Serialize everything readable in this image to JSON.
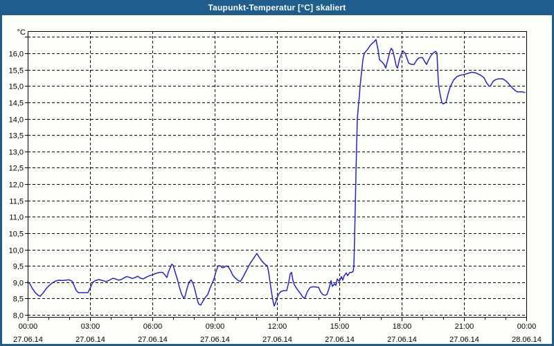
{
  "window": {
    "title": "Taupunkt-Temperatur [°C] skaliert"
  },
  "colors": {
    "titlebar_bg": "#1e5d8c",
    "frame": "#1e5d8c",
    "title_text": "#ffffff",
    "background": "#fcfef8",
    "grid": "#000000",
    "axis_text": "#000000",
    "line": "#2222c8"
  },
  "chart_data": {
    "type": "line",
    "title": "Taupunkt-Temperatur [°C] skaliert",
    "unit_label": "°C",
    "grid": "dashed",
    "legend_position": "none",
    "ylim": [
      8.0,
      16.5
    ],
    "xlim_minutes": [
      0,
      1440
    ],
    "y_axis": {
      "ticks": [
        {
          "value": 16.5,
          "label": ""
        },
        {
          "value": 16.0,
          "label": "16,0"
        },
        {
          "value": 15.5,
          "label": "15,5"
        },
        {
          "value": 15.0,
          "label": "15,0"
        },
        {
          "value": 14.5,
          "label": "14,5"
        },
        {
          "value": 14.0,
          "label": "14,0"
        },
        {
          "value": 13.5,
          "label": "13,5"
        },
        {
          "value": 13.0,
          "label": "13,0"
        },
        {
          "value": 12.5,
          "label": "12,5"
        },
        {
          "value": 12.0,
          "label": "12,0"
        },
        {
          "value": 11.5,
          "label": "11,5"
        },
        {
          "value": 11.0,
          "label": "11,0"
        },
        {
          "value": 10.5,
          "label": "10,5"
        },
        {
          "value": 10.0,
          "label": "10,0"
        },
        {
          "value": 9.5,
          "label": "9,5"
        },
        {
          "value": 9.0,
          "label": "9,0"
        },
        {
          "value": 8.5,
          "label": "8,5"
        },
        {
          "value": 8.0,
          "label": "8,0"
        }
      ]
    },
    "x_axis": {
      "minor_tick_every_minutes": 60,
      "ticks": [
        {
          "minutes": 0,
          "time": "00:00",
          "date": "27.06.14"
        },
        {
          "minutes": 180,
          "time": "03:00",
          "date": "27.06.14"
        },
        {
          "minutes": 360,
          "time": "06:00",
          "date": "27.06.14"
        },
        {
          "minutes": 540,
          "time": "09:00",
          "date": "27.06.14"
        },
        {
          "minutes": 720,
          "time": "12:00",
          "date": "27.06.14"
        },
        {
          "minutes": 900,
          "time": "15:00",
          "date": "27.06.14"
        },
        {
          "minutes": 1080,
          "time": "18:00",
          "date": "27.06.14"
        },
        {
          "minutes": 1260,
          "time": "21:00",
          "date": "27.06.14"
        },
        {
          "minutes": 1440,
          "time": "00:00",
          "date": "28.06.14"
        }
      ]
    },
    "series": [
      {
        "name": "Taupunkt-Temperatur",
        "color": "#2222c8",
        "points": [
          [
            0,
            9.02
          ],
          [
            6,
            8.95
          ],
          [
            14,
            8.8
          ],
          [
            22,
            8.68
          ],
          [
            30,
            8.6
          ],
          [
            36,
            8.57
          ],
          [
            44,
            8.66
          ],
          [
            52,
            8.78
          ],
          [
            60,
            8.88
          ],
          [
            70,
            8.97
          ],
          [
            80,
            9.03
          ],
          [
            90,
            9.06
          ],
          [
            100,
            9.05
          ],
          [
            110,
            9.06
          ],
          [
            120,
            9.07
          ],
          [
            128,
            9.03
          ],
          [
            134,
            8.9
          ],
          [
            140,
            8.75
          ],
          [
            146,
            8.68
          ],
          [
            156,
            8.68
          ],
          [
            166,
            8.68
          ],
          [
            174,
            8.68
          ],
          [
            182,
            8.85
          ],
          [
            188,
            9.0
          ],
          [
            196,
            9.05
          ],
          [
            206,
            9.08
          ],
          [
            216,
            9.05
          ],
          [
            226,
            9.02
          ],
          [
            236,
            9.06
          ],
          [
            246,
            9.12
          ],
          [
            254,
            9.1
          ],
          [
            262,
            9.06
          ],
          [
            270,
            9.08
          ],
          [
            278,
            9.13
          ],
          [
            286,
            9.17
          ],
          [
            294,
            9.15
          ],
          [
            302,
            9.11
          ],
          [
            310,
            9.14
          ],
          [
            318,
            9.18
          ],
          [
            326,
            9.12
          ],
          [
            334,
            9.1
          ],
          [
            342,
            9.15
          ],
          [
            350,
            9.19
          ],
          [
            358,
            9.22
          ],
          [
            366,
            9.25
          ],
          [
            374,
            9.28
          ],
          [
            382,
            9.3
          ],
          [
            390,
            9.3
          ],
          [
            398,
            9.2
          ],
          [
            402,
            9.14
          ],
          [
            406,
            9.3
          ],
          [
            412,
            9.45
          ],
          [
            416,
            9.55
          ],
          [
            420,
            9.52
          ],
          [
            426,
            9.3
          ],
          [
            432,
            9.1
          ],
          [
            438,
            8.85
          ],
          [
            444,
            8.65
          ],
          [
            450,
            8.52
          ],
          [
            454,
            8.55
          ],
          [
            460,
            8.8
          ],
          [
            466,
            9.0
          ],
          [
            472,
            9.07
          ],
          [
            478,
            8.95
          ],
          [
            484,
            8.72
          ],
          [
            490,
            8.45
          ],
          [
            494,
            8.33
          ],
          [
            500,
            8.3
          ],
          [
            506,
            8.42
          ],
          [
            514,
            8.55
          ],
          [
            520,
            8.62
          ],
          [
            526,
            8.8
          ],
          [
            532,
            8.95
          ],
          [
            538,
            9.1
          ],
          [
            544,
            9.33
          ],
          [
            550,
            9.5
          ],
          [
            556,
            9.5
          ],
          [
            562,
            9.44
          ],
          [
            568,
            9.46
          ],
          [
            574,
            9.5
          ],
          [
            580,
            9.46
          ],
          [
            586,
            9.35
          ],
          [
            592,
            9.22
          ],
          [
            600,
            9.12
          ],
          [
            608,
            9.05
          ],
          [
            614,
            9.02
          ],
          [
            620,
            9.12
          ],
          [
            628,
            9.28
          ],
          [
            636,
            9.45
          ],
          [
            644,
            9.6
          ],
          [
            652,
            9.72
          ],
          [
            658,
            9.82
          ],
          [
            662,
            9.88
          ],
          [
            668,
            9.77
          ],
          [
            674,
            9.68
          ],
          [
            680,
            9.6
          ],
          [
            686,
            9.54
          ],
          [
            692,
            9.5
          ],
          [
            696,
            9.3
          ],
          [
            700,
            9.0
          ],
          [
            704,
            8.7
          ],
          [
            708,
            8.45
          ],
          [
            712,
            8.27
          ],
          [
            716,
            8.37
          ],
          [
            720,
            8.52
          ],
          [
            726,
            8.65
          ],
          [
            732,
            8.72
          ],
          [
            740,
            8.74
          ],
          [
            748,
            8.74
          ],
          [
            754,
            9.0
          ],
          [
            758,
            9.25
          ],
          [
            762,
            9.3
          ],
          [
            766,
            9.05
          ],
          [
            770,
            8.92
          ],
          [
            776,
            8.82
          ],
          [
            782,
            8.73
          ],
          [
            788,
            8.65
          ],
          [
            794,
            8.55
          ],
          [
            800,
            8.5
          ],
          [
            808,
            8.72
          ],
          [
            816,
            8.84
          ],
          [
            824,
            8.86
          ],
          [
            832,
            8.85
          ],
          [
            840,
            8.84
          ],
          [
            846,
            8.7
          ],
          [
            852,
            8.62
          ],
          [
            858,
            8.6
          ],
          [
            864,
            8.62
          ],
          [
            870,
            8.8
          ],
          [
            876,
            9.05
          ],
          [
            880,
            8.87
          ],
          [
            886,
            8.95
          ],
          [
            890,
            8.9
          ],
          [
            894,
            9.1
          ],
          [
            900,
            9.02
          ],
          [
            906,
            9.17
          ],
          [
            910,
            9.06
          ],
          [
            914,
            9.2
          ],
          [
            920,
            9.28
          ],
          [
            924,
            9.2
          ],
          [
            930,
            9.3
          ],
          [
            936,
            9.3
          ],
          [
            940,
            9.33
          ],
          [
            942,
            9.5
          ],
          [
            944,
            10.3
          ],
          [
            946,
            11.3
          ],
          [
            948,
            12.3
          ],
          [
            950,
            13.2
          ],
          [
            952,
            14.0
          ],
          [
            956,
            14.5
          ],
          [
            958,
            14.7
          ],
          [
            960,
            15.0
          ],
          [
            964,
            15.4
          ],
          [
            968,
            15.8
          ],
          [
            972,
            16.0
          ],
          [
            980,
            16.1
          ],
          [
            990,
            16.25
          ],
          [
            1000,
            16.35
          ],
          [
            1006,
            16.42
          ],
          [
            1012,
            16.1
          ],
          [
            1016,
            15.8
          ],
          [
            1022,
            15.75
          ],
          [
            1030,
            15.65
          ],
          [
            1034,
            15.55
          ],
          [
            1040,
            15.8
          ],
          [
            1046,
            16.05
          ],
          [
            1050,
            16.15
          ],
          [
            1054,
            16.1
          ],
          [
            1060,
            15.83
          ],
          [
            1064,
            15.62
          ],
          [
            1068,
            15.55
          ],
          [
            1074,
            15.83
          ],
          [
            1080,
            16.0
          ],
          [
            1084,
            16.07
          ],
          [
            1090,
            16.0
          ],
          [
            1096,
            15.83
          ],
          [
            1100,
            15.7
          ],
          [
            1108,
            15.66
          ],
          [
            1116,
            15.66
          ],
          [
            1124,
            15.8
          ],
          [
            1130,
            15.86
          ],
          [
            1140,
            15.87
          ],
          [
            1148,
            15.72
          ],
          [
            1152,
            15.66
          ],
          [
            1158,
            15.8
          ],
          [
            1164,
            15.92
          ],
          [
            1172,
            16.02
          ],
          [
            1178,
            16.06
          ],
          [
            1182,
            16.0
          ],
          [
            1186,
            15.1
          ],
          [
            1190,
            14.8
          ],
          [
            1196,
            14.5
          ],
          [
            1200,
            14.45
          ],
          [
            1208,
            14.5
          ],
          [
            1214,
            14.75
          ],
          [
            1220,
            14.97
          ],
          [
            1230,
            15.18
          ],
          [
            1240,
            15.29
          ],
          [
            1250,
            15.33
          ],
          [
            1260,
            15.35
          ],
          [
            1270,
            15.38
          ],
          [
            1282,
            15.42
          ],
          [
            1294,
            15.4
          ],
          [
            1308,
            15.33
          ],
          [
            1318,
            15.25
          ],
          [
            1324,
            15.12
          ],
          [
            1332,
            15.0
          ],
          [
            1336,
            14.99
          ],
          [
            1344,
            15.14
          ],
          [
            1352,
            15.2
          ],
          [
            1360,
            15.22
          ],
          [
            1372,
            15.22
          ],
          [
            1382,
            15.15
          ],
          [
            1392,
            15.03
          ],
          [
            1400,
            14.94
          ],
          [
            1408,
            14.86
          ],
          [
            1414,
            14.82
          ],
          [
            1430,
            14.82
          ],
          [
            1436,
            14.8
          ]
        ]
      }
    ]
  }
}
